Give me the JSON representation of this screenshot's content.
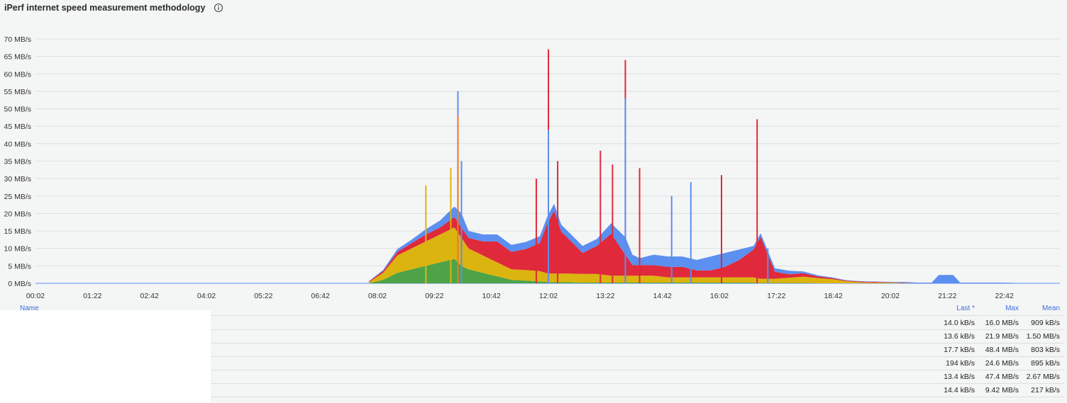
{
  "panel": {
    "title": "iPerf internet speed measurement methodology",
    "info_icon": "info-circle-icon"
  },
  "chart_data": {
    "type": "area",
    "stacked": true,
    "title": "iPerf internet speed measurement methodology",
    "xlabel": "",
    "ylabel": "",
    "ylim": [
      0,
      70
    ],
    "yunit": "MB/s",
    "yticks": [
      "0 MB/s",
      "5 MB/s",
      "10 MB/s",
      "15 MB/s",
      "20 MB/s",
      "25 MB/s",
      "30 MB/s",
      "35 MB/s",
      "40 MB/s",
      "45 MB/s",
      "50 MB/s",
      "55 MB/s",
      "60 MB/s",
      "65 MB/s",
      "70 MB/s"
    ],
    "xticks": [
      "00:02",
      "01:22",
      "02:42",
      "04:02",
      "05:22",
      "06:42",
      "08:02",
      "09:22",
      "10:42",
      "12:02",
      "13:22",
      "14:42",
      "16:02",
      "17:22",
      "18:42",
      "20:02",
      "21:22",
      "22:42"
    ],
    "grid": true,
    "legend": "bottom-table",
    "colors": {
      "green": "#4ea346",
      "yellow": "#dcb40f",
      "red": "#e0293a",
      "blue": "#5b8ff0",
      "orange": "#f07a1e"
    },
    "x": [
      "07:50",
      "08:10",
      "08:30",
      "08:50",
      "09:10",
      "09:30",
      "09:50",
      "10:00",
      "10:10",
      "10:30",
      "10:50",
      "11:10",
      "11:30",
      "11:50",
      "12:00",
      "12:10",
      "12:20",
      "12:30",
      "12:50",
      "13:10",
      "13:30",
      "13:50",
      "14:00",
      "14:10",
      "14:30",
      "14:50",
      "15:10",
      "15:30",
      "15:50",
      "16:10",
      "16:30",
      "16:50",
      "17:00",
      "17:20",
      "17:40",
      "18:00",
      "18:20",
      "18:40",
      "19:00",
      "19:20",
      "19:40",
      "20:00",
      "20:20",
      "20:40",
      "21:00",
      "21:10",
      "21:30",
      "21:40",
      "22:00",
      "22:20",
      "22:40",
      "23:00"
    ],
    "series": [
      {
        "color": "green",
        "values": [
          0,
          1,
          3,
          4,
          5,
          6,
          7,
          5,
          4,
          3,
          2,
          1,
          0.8,
          0.5,
          0.4,
          0.3,
          0.3,
          0.3,
          0.2,
          0.2,
          0.2,
          0.2,
          0.2,
          0.2,
          0.2,
          0.2,
          0.2,
          0.2,
          0.2,
          0.2,
          0.2,
          0.2,
          0.1,
          0.1,
          0.1,
          0.1,
          0,
          0,
          0,
          0,
          0,
          0,
          0,
          0,
          0,
          0,
          0,
          0,
          0,
          0,
          0,
          0
        ]
      },
      {
        "color": "yellow",
        "values": [
          0.3,
          2,
          5,
          6,
          7,
          8,
          9,
          8,
          6,
          5,
          4,
          3,
          3,
          3,
          2.5,
          2.5,
          2.5,
          2.5,
          2.5,
          2.5,
          2,
          2,
          2,
          2,
          2,
          1.5,
          1.5,
          1.5,
          1.5,
          1.5,
          1.5,
          1.5,
          1.2,
          1.2,
          1.5,
          1.8,
          1.5,
          1.2,
          0.6,
          0.3,
          0.2,
          0.2,
          0.1,
          0,
          0,
          0,
          0,
          0,
          0,
          0,
          0,
          0
        ]
      },
      {
        "color": "red",
        "values": [
          0.2,
          0.5,
          1,
          1.5,
          2,
          2,
          3,
          3,
          3,
          4,
          6,
          5,
          6,
          8,
          14,
          18,
          12,
          10,
          6,
          8,
          12,
          6,
          3,
          3,
          3,
          3,
          3,
          2,
          2,
          3,
          5,
          8,
          12,
          2,
          1,
          1,
          0.5,
          0.3,
          0.2,
          0.2,
          0.2,
          0.1,
          0.1,
          0,
          0,
          0,
          0,
          0,
          0,
          0,
          0,
          0
        ]
      },
      {
        "color": "blue",
        "values": [
          0.1,
          0.3,
          0.8,
          1,
          1.5,
          2,
          3,
          4,
          2,
          2,
          2,
          2,
          2,
          2,
          2,
          2,
          2,
          2,
          2,
          2,
          3,
          5,
          3,
          2,
          3,
          3,
          3,
          3,
          4,
          4,
          3,
          1,
          1,
          1,
          1,
          0.5,
          0.3,
          0.2,
          0.1,
          0.1,
          0.1,
          0.1,
          0.2,
          0.2,
          0.2,
          2.4,
          2.4,
          0.2,
          0.2,
          0.2,
          0.2,
          0.1
        ]
      }
    ],
    "spikes": [
      {
        "x": "09:55",
        "series": "blue",
        "value": 55
      },
      {
        "x": "09:55",
        "series": "orange",
        "value": 48
      },
      {
        "x": "09:45",
        "series": "yellow",
        "value": 33
      },
      {
        "x": "09:10",
        "series": "yellow",
        "value": 28
      },
      {
        "x": "10:00",
        "series": "blue",
        "value": 35
      },
      {
        "x": "11:45",
        "series": "red",
        "value": 30
      },
      {
        "x": "12:02",
        "series": "red",
        "value": 67
      },
      {
        "x": "12:02",
        "series": "blue",
        "value": 44
      },
      {
        "x": "12:15",
        "series": "red",
        "value": 35
      },
      {
        "x": "13:15",
        "series": "red",
        "value": 38
      },
      {
        "x": "13:32",
        "series": "red",
        "value": 34
      },
      {
        "x": "13:50",
        "series": "red",
        "value": 64
      },
      {
        "x": "13:50",
        "series": "blue",
        "value": 53
      },
      {
        "x": "14:10",
        "series": "red",
        "value": 33
      },
      {
        "x": "14:55",
        "series": "blue",
        "value": 25
      },
      {
        "x": "15:22",
        "series": "blue",
        "value": 29
      },
      {
        "x": "16:05",
        "series": "red",
        "value": 31
      },
      {
        "x": "16:55",
        "series": "red",
        "value": 47
      },
      {
        "x": "17:10",
        "series": "blue",
        "value": 10
      }
    ]
  },
  "legend_table": {
    "headers": {
      "name": "Name",
      "last": "Last *",
      "max": "Max",
      "mean": "Mean"
    },
    "rows": [
      {
        "last": "14.0 kB/s",
        "max": "16.0 MB/s",
        "mean": "909 kB/s"
      },
      {
        "last": "13.6 kB/s",
        "max": "21.9 MB/s",
        "mean": "1.50 MB/s"
      },
      {
        "last": "17.7 kB/s",
        "max": "48.4 MB/s",
        "mean": "803 kB/s"
      },
      {
        "last": "194 kB/s",
        "max": "24.6 MB/s",
        "mean": "895 kB/s"
      },
      {
        "last": "13.4 kB/s",
        "max": "47.4 MB/s",
        "mean": "2.67 MB/s"
      },
      {
        "last": "14.4 kB/s",
        "max": "9.42 MB/s",
        "mean": "217 kB/s"
      }
    ]
  }
}
